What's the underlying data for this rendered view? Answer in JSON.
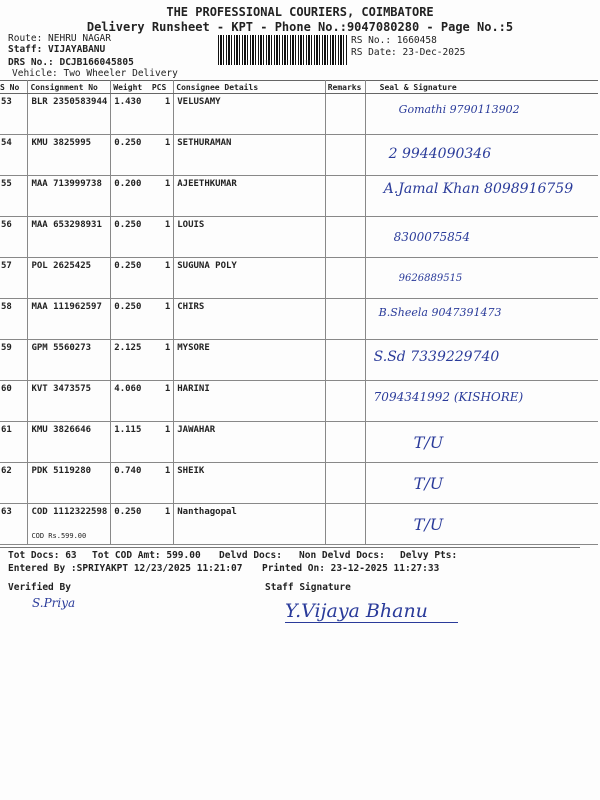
{
  "header": {
    "company": "THE PROFESSIONAL COURIERS, COIMBATORE",
    "subtitle": "Delivery Runsheet - KPT - Phone No.:9047080280 - Page No.:5",
    "route": "Route: NEHRU NAGAR",
    "staff": "Staff: VIJAYABANU",
    "drs": "DRS No.: DCJB166045805",
    "vehicle": "Vehicle: Two Wheeler Delivery",
    "rs_no": "RS No.: 1660458",
    "rs_date": "RS Date: 23-Dec-2025"
  },
  "table": {
    "columns": [
      "S No",
      "Consignment No",
      "Weight",
      "PCS",
      "Consignee Details",
      "Remarks",
      "Seal & Signature"
    ],
    "rows": [
      {
        "sno": "53",
        "cno": "BLR 2350583944",
        "wt": "1.430",
        "pcs": "1",
        "name": "VELUSAMY",
        "sig": "Gomathi 9790113902"
      },
      {
        "sno": "54",
        "cno": "KMU 3825995",
        "wt": "0.250",
        "pcs": "1",
        "name": "SETHURAMAN",
        "sig": "2 9944090346"
      },
      {
        "sno": "55",
        "cno": "MAA 713999738",
        "wt": "0.200",
        "pcs": "1",
        "name": "AJEETHKUMAR",
        "sig": "A.Jamal Khan 8098916759"
      },
      {
        "sno": "56",
        "cno": "MAA 653298931",
        "wt": "0.250",
        "pcs": "1",
        "name": "LOUIS",
        "sig": "8300075854"
      },
      {
        "sno": "57",
        "cno": "POL 2625425",
        "wt": "0.250",
        "pcs": "1",
        "name": "SUGUNA POLY",
        "sig": "9626889515"
      },
      {
        "sno": "58",
        "cno": "MAA 111962597",
        "wt": "0.250",
        "pcs": "1",
        "name": "CHIRS",
        "sig": "B.Sheela 9047391473"
      },
      {
        "sno": "59",
        "cno": "GPM 5560273",
        "wt": "2.125",
        "pcs": "1",
        "name": "MYSORE",
        "sig": "S.Sd 7339229740"
      },
      {
        "sno": "60",
        "cno": "KVT 3473575",
        "wt": "4.060",
        "pcs": "1",
        "name": "HARINI",
        "sig": "7094341992 (KISHORE)"
      },
      {
        "sno": "61",
        "cno": "KMU 3826646",
        "wt": "1.115",
        "pcs": "1",
        "name": "JAWAHAR",
        "sig": "T/U"
      },
      {
        "sno": "62",
        "cno": "PDK 5119280",
        "wt": "0.740",
        "pcs": "1",
        "name": "SHEIK",
        "sig": "T/U"
      },
      {
        "sno": "63",
        "cno": "COD 1112322598",
        "wt": "0.250",
        "pcs": "1",
        "name": "Nanthagopal",
        "sig": "T/U",
        "cod": "COD Rs.599.00"
      }
    ]
  },
  "footer": {
    "tot_docs": "Tot Docs:  63",
    "tot_cod": "Tot COD Amt:  599.00",
    "delvd": "Delvd Docs:",
    "non_delvd": "Non Delvd Docs:",
    "delvy_pts": "Delvy Pts:",
    "entered": "Entered By :SPRIYAKPT 12/23/2025 11:21:07",
    "printed": "Printed On: 23-12-2025 11:27:33",
    "verified": "Verified By",
    "staff_sig": "Staff Signature",
    "verified_sig": "S.Priya",
    "staff_sig_hand": "Y.Vijaya Bhanu"
  },
  "colors": {
    "ink": "#2a3b9a"
  }
}
